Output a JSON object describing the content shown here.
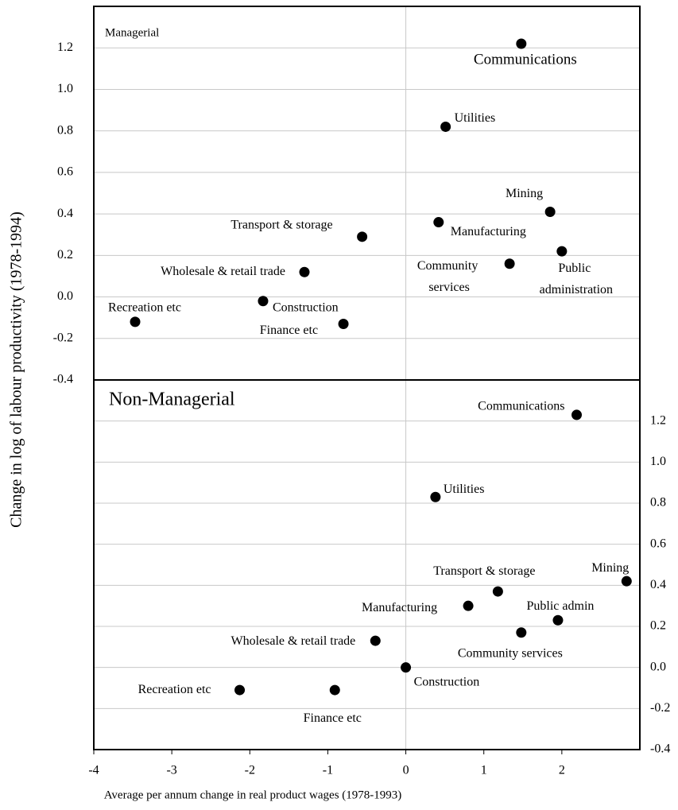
{
  "chart_data": [
    {
      "type": "scatter",
      "title": "Managerial",
      "ylabel": "Change in log of labour productivity (1978-1994)",
      "point_labels": [
        "Communications",
        "Utilities",
        "Mining",
        "Manufacturing",
        "Transport & storage",
        "Public administration",
        "Community services",
        "Wholesale & retail trade",
        "Construction",
        "Recreation etc",
        "Finance etc"
      ],
      "x": [
        1.48,
        0.51,
        1.85,
        0.42,
        -0.56,
        2.0,
        1.33,
        -1.3,
        -1.83,
        -3.47,
        -0.8
      ],
      "values": [
        1.22,
        0.82,
        0.41,
        0.36,
        0.29,
        0.22,
        0.16,
        0.12,
        -0.02,
        -0.12,
        -0.13
      ],
      "color": "#000000",
      "xlim": [
        -4,
        3
      ],
      "ylim": [
        -0.4,
        1.4
      ],
      "yticks": [
        1.2,
        {
          "value": 1.0,
          "label": "1.0"
        },
        0.8,
        0.6,
        0.4,
        0.2,
        {
          "value": 0,
          "label": "0.0"
        },
        -0.2,
        -0.4
      ],
      "ytick_position": "left",
      "grid": true
    },
    {
      "type": "scatter",
      "title": "Non-Managerial",
      "xlabel": "Average per annum change in real product wages (1978-1993)",
      "point_labels": [
        "Communications",
        "Utilities",
        "Mining",
        "Transport & storage",
        "Manufacturing",
        "Public admin",
        "Community services",
        "Wholesale & retail trade",
        "Construction",
        "Recreation etc",
        "Finance etc"
      ],
      "x": [
        2.19,
        0.38,
        2.83,
        1.18,
        0.8,
        1.95,
        1.48,
        -0.39,
        0,
        -2.13,
        -0.91
      ],
      "values": [
        1.23,
        0.83,
        0.42,
        0.37,
        0.3,
        0.23,
        0.17,
        0.13,
        0,
        -0.11,
        -0.11
      ],
      "color": "#000000",
      "xlim": [
        -4,
        3
      ],
      "ylim": [
        -0.4,
        1.4
      ],
      "xticks": [
        -4,
        -3,
        -2,
        -1,
        0,
        1,
        2
      ],
      "yticks": [
        1.2,
        {
          "value": 1.0,
          "label": "1.0"
        },
        0.8,
        0.6,
        0.4,
        0.2,
        {
          "value": 0,
          "label": "0.0"
        },
        -0.2,
        -0.4
      ],
      "ytick_position": "right",
      "grid": true
    }
  ]
}
